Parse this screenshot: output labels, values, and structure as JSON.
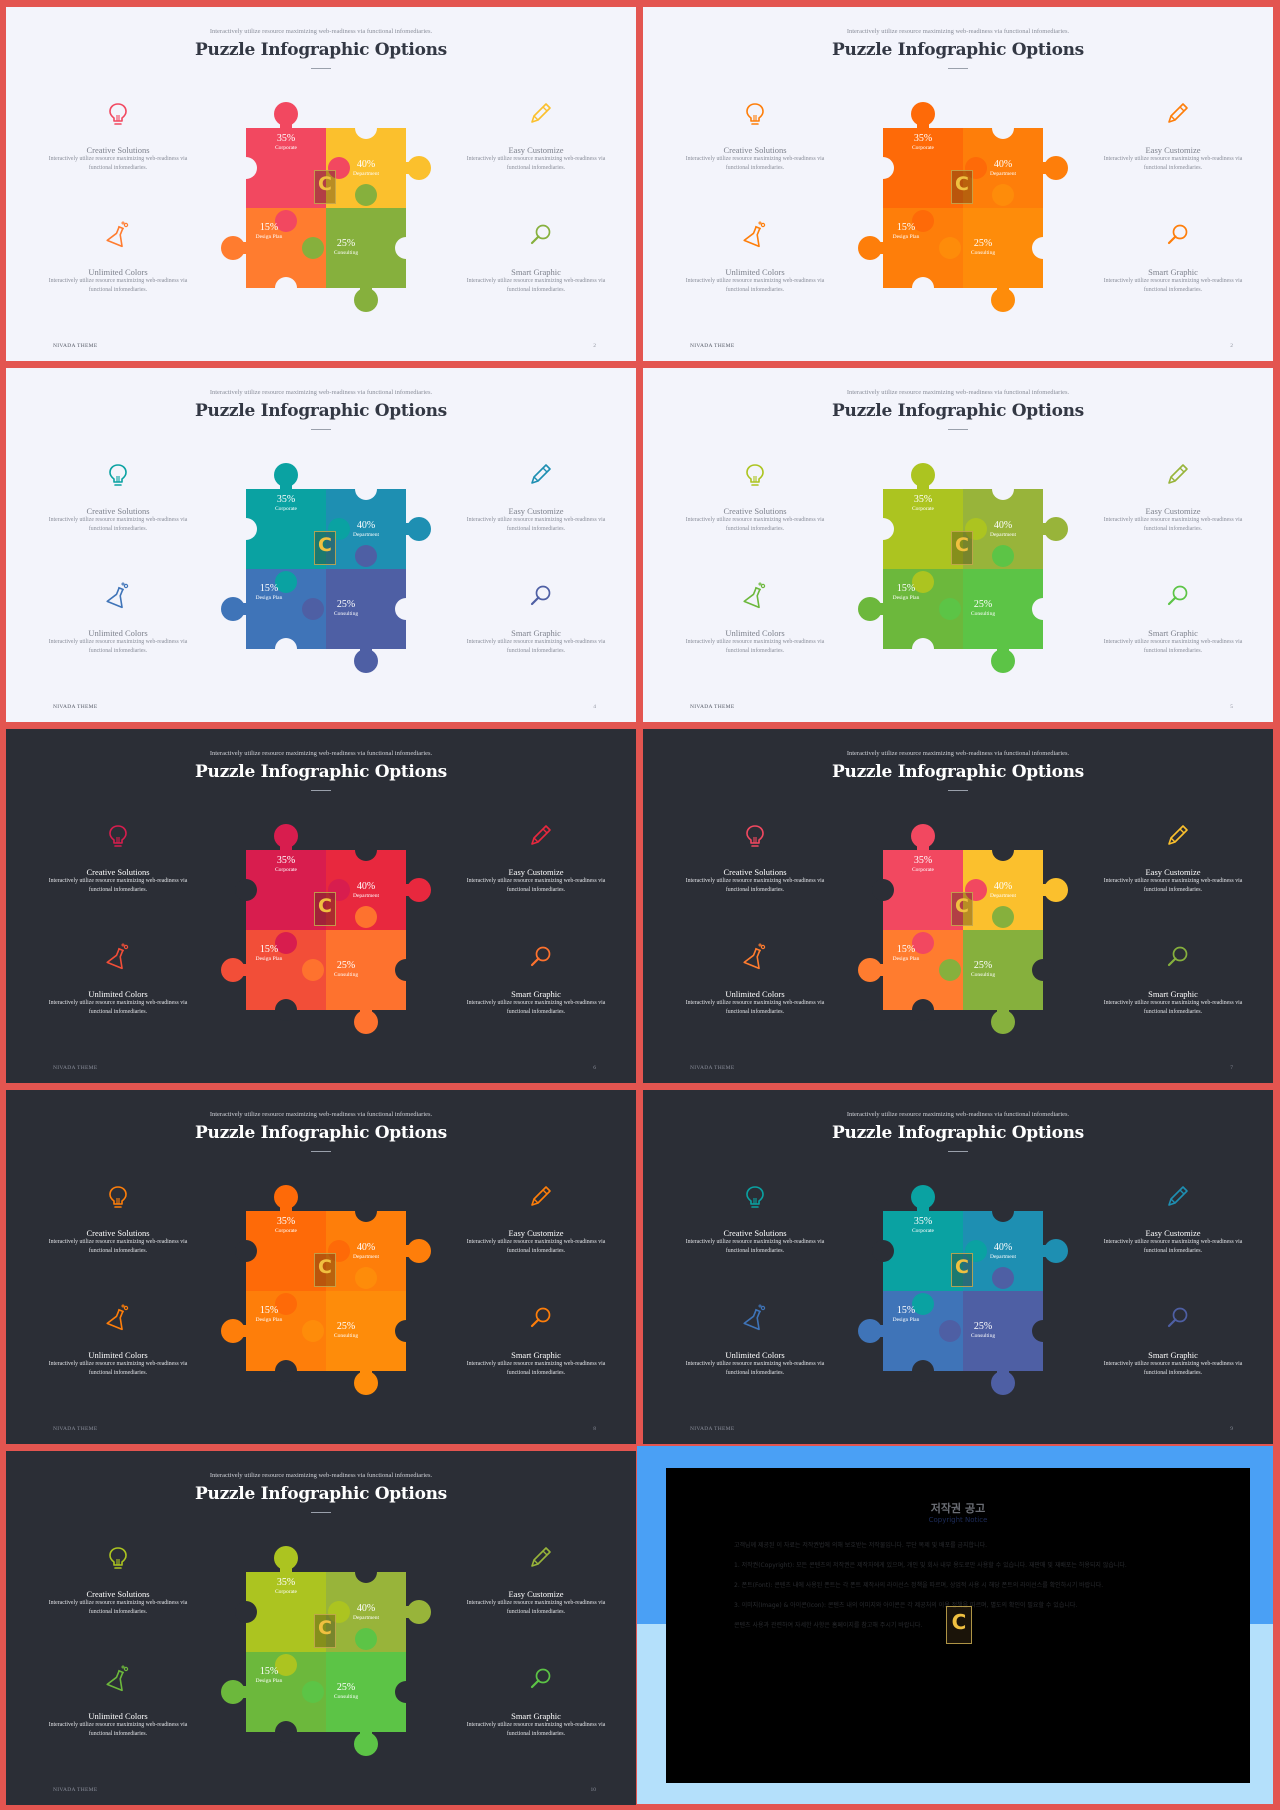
{
  "slides": [
    {
      "theme": "light",
      "page": "2",
      "colors": [
        "#f24860",
        "#fbc02d",
        "#ff7c2f",
        "#86b03d"
      ],
      "icon_colors": [
        "#f24860",
        "#fbc02d",
        "#ff7c2f",
        "#86b03d"
      ]
    },
    {
      "theme": "light",
      "page": "2",
      "colors": [
        "#fe6a08",
        "#fe7e0a",
        "#fe7e0a",
        "#fe8c0a"
      ],
      "icon_colors": [
        "#fe7e0a",
        "#fe7e0a",
        "#fe7e0a",
        "#fe7e0a"
      ]
    },
    {
      "theme": "light",
      "page": "4",
      "colors": [
        "#0aa2a2",
        "#1e8fb2",
        "#3f74b8",
        "#4e5fa4"
      ],
      "icon_colors": [
        "#0aa2a2",
        "#1e8fb2",
        "#3f74b8",
        "#4e5fa4"
      ]
    },
    {
      "theme": "light",
      "page": "5",
      "colors": [
        "#acc420",
        "#98b43a",
        "#6cb83c",
        "#5cc446"
      ],
      "icon_colors": [
        "#acc420",
        "#98b43a",
        "#6cb83c",
        "#5cc446"
      ]
    },
    {
      "theme": "dark",
      "page": "6",
      "colors": [
        "#d81d4e",
        "#e8283e",
        "#f24e38",
        "#fe722e"
      ],
      "icon_colors": [
        "#d81d4e",
        "#e8283e",
        "#f24e38",
        "#fe722e"
      ]
    },
    {
      "theme": "dark",
      "page": "7",
      "colors": [
        "#f24860",
        "#fbc02d",
        "#ff7c2f",
        "#86b03d"
      ],
      "icon_colors": [
        "#f24860",
        "#fbc02d",
        "#ff7c2f",
        "#86b03d"
      ]
    },
    {
      "theme": "dark",
      "page": "8",
      "colors": [
        "#fe6a08",
        "#fe7e0a",
        "#fe7e0a",
        "#fe8c0a"
      ],
      "icon_colors": [
        "#fe7e0a",
        "#fe7e0a",
        "#fe7e0a",
        "#fe7e0a"
      ]
    },
    {
      "theme": "dark",
      "page": "9",
      "colors": [
        "#0aa2a2",
        "#1e8fb2",
        "#3f74b8",
        "#4e5fa4"
      ],
      "icon_colors": [
        "#0aa2a2",
        "#1e8fb2",
        "#3f74b8",
        "#4e5fa4"
      ]
    },
    {
      "theme": "dark",
      "page": "10",
      "colors": [
        "#acc420",
        "#98b43a",
        "#6cb83c",
        "#5cc446"
      ],
      "icon_colors": [
        "#acc420",
        "#98b43a",
        "#6cb83c",
        "#5cc446"
      ]
    }
  ],
  "common": {
    "subtitle": "Interactively utilize resource maximizing web-readiness via functional infomediaries.",
    "title": "Puzzle Infographic Options",
    "footer_brand": "NIVADA THEME",
    "logo_letter": "C",
    "features": [
      {
        "title": "Creative Solutions",
        "desc": "Interactively utilize resource maximizing web-readiness via functional infomediaries.",
        "icon": "lightbulb-icon"
      },
      {
        "title": "Easy Customize",
        "desc": "Interactively utilize resource maximizing web-readiness via functional infomediaries.",
        "icon": "pencil-icon"
      },
      {
        "title": "Unlimited Colors",
        "desc": "Interactively utilize resource maximizing web-readiness via functional infomediaries.",
        "icon": "flask-icon"
      },
      {
        "title": "Smart Graphic",
        "desc": "Interactively utilize resource maximizing web-readiness via functional infomediaries.",
        "icon": "magnifier-icon"
      }
    ],
    "pieces": [
      {
        "value": "35%",
        "label": "Corporate"
      },
      {
        "value": "40%",
        "label": "Department"
      },
      {
        "value": "15%",
        "label": "Design Plan"
      },
      {
        "value": "25%",
        "label": "Consulting"
      }
    ]
  },
  "notice": {
    "title": "저작권 공고",
    "subtitle": "Copyright Notice",
    "paragraphs": [
      "고객님께 제공된 이 자료는 저작권법에 의해 보호받는 저작물입니다. 무단 복제 및 배포를 금지합니다.",
      "1. 저작권(Copyright): 모든 콘텐츠의 저작권은 제작자에게 있으며, 개인 및 회사 내부 용도로만 사용할 수 있습니다. 재판매 및 재배포는 허용되지 않습니다.",
      "2. 폰트(Font): 콘텐츠 내에 사용된 폰트는 각 폰트 제작사의 라이선스 정책을 따르며, 상업적 사용 시 해당 폰트의 라이선스를 확인하시기 바랍니다.",
      "3. 이미지(Image) & 아이콘(Icon): 콘텐츠 내의 이미지와 아이콘은 각 제공처의 이용 정책을 따르며, 별도의 확인이 필요할 수 있습니다.",
      "콘텐츠 사용과 관련하여 자세한 사항은 홈페이지를 참고해 주시기 바랍니다."
    ]
  }
}
